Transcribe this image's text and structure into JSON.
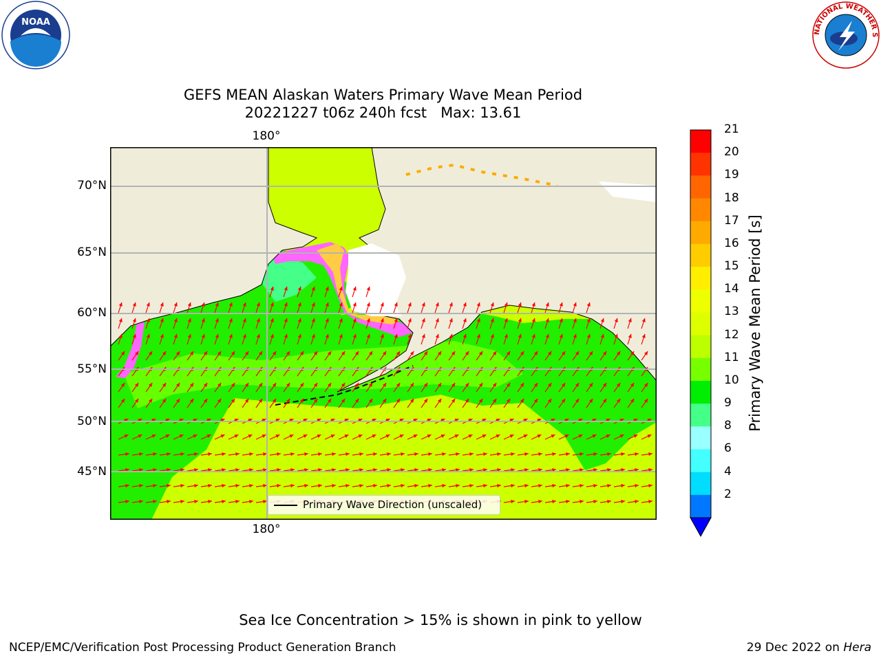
{
  "title": {
    "line1": "GEFS MEAN Alaskan Waters Primary Wave Mean Period",
    "line2": "20221227 t06z 240h fcst   Max: 13.61"
  },
  "map": {
    "lat_labels": [
      "70°N",
      "65°N",
      "60°N",
      "55°N",
      "50°N",
      "45°N"
    ],
    "lon_label_top": "180°",
    "lon_label_bottom": "180°",
    "legend": "Primary Wave Direction (unscaled)"
  },
  "colorbar": {
    "label": "Primary Wave Mean Period [s]",
    "ticks": [
      "21",
      "20",
      "19",
      "18",
      "17",
      "16",
      "15",
      "14",
      "13",
      "12",
      "11",
      "10",
      "9",
      "8",
      "6",
      "4",
      "2"
    ],
    "colors": [
      "#ff0000",
      "#ff3300",
      "#ff6600",
      "#ff8800",
      "#ffaa00",
      "#ffcc00",
      "#ffee00",
      "#eeff00",
      "#ddff00",
      "#bbff00",
      "#77ff00",
      "#00ee00",
      "#44ff88",
      "#99ffff",
      "#44ffff",
      "#00ddff",
      "#0077ff"
    ],
    "underflow_color": "#0000ff"
  },
  "colors": {
    "land": "#efedda",
    "ice": "#ffffff",
    "arrow": "#ff0000",
    "coast": "#000000",
    "grid": "#b3b3b3"
  },
  "logos": {
    "left": "NOAA",
    "right": "NATIONAL WEATHER SERVICE"
  },
  "notes": {
    "sea_ice": "Sea Ice Concentration > 15% is shown in pink to yellow"
  },
  "footer": {
    "left": "NCEP/EMC/Verification Post Processing Product Generation Branch",
    "right_prefix": "29 Dec 2022 on ",
    "right_host": "Hera"
  }
}
